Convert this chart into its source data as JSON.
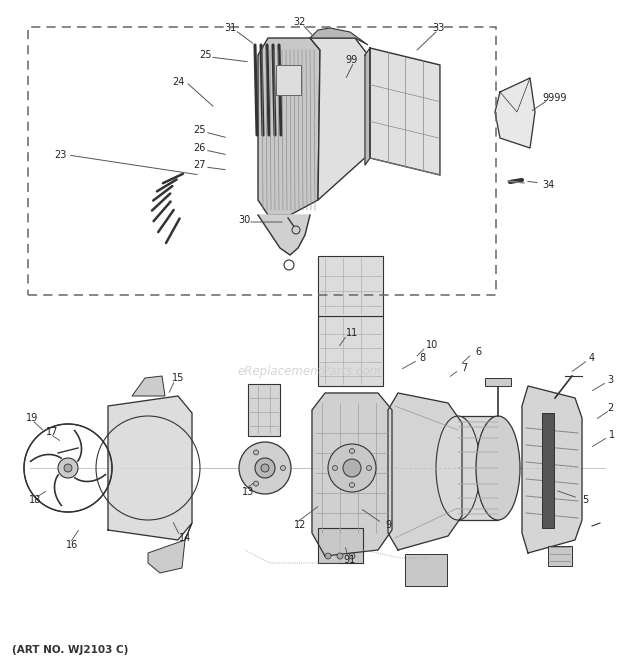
{
  "bg_color": "#ffffff",
  "text_color": "#222222",
  "line_color": "#333333",
  "art_no": "(ART NO. WJ2103 C)",
  "watermark": "eReplacementParts.com",
  "top_labels": [
    [
      60,
      155,
      "23"
    ],
    [
      178,
      82,
      "24"
    ],
    [
      205,
      55,
      "25"
    ],
    [
      199,
      130,
      "25"
    ],
    [
      199,
      148,
      "26"
    ],
    [
      199,
      165,
      "27"
    ],
    [
      244,
      220,
      "30"
    ],
    [
      230,
      28,
      "31"
    ],
    [
      300,
      22,
      "32"
    ],
    [
      352,
      60,
      "99"
    ],
    [
      438,
      28,
      "33"
    ],
    [
      555,
      98,
      "9999"
    ],
    [
      548,
      185,
      "34"
    ]
  ],
  "bot_labels": [
    [
      610,
      408,
      "2"
    ],
    [
      612,
      435,
      "1"
    ],
    [
      610,
      380,
      "3"
    ],
    [
      592,
      358,
      "4"
    ],
    [
      585,
      500,
      "5"
    ],
    [
      478,
      352,
      "6"
    ],
    [
      464,
      368,
      "7"
    ],
    [
      422,
      358,
      "8"
    ],
    [
      388,
      525,
      "9"
    ],
    [
      432,
      345,
      "10"
    ],
    [
      352,
      333,
      "11"
    ],
    [
      300,
      525,
      "12"
    ],
    [
      248,
      492,
      "13"
    ],
    [
      185,
      538,
      "14"
    ],
    [
      178,
      378,
      "15"
    ],
    [
      72,
      545,
      "16"
    ],
    [
      52,
      432,
      "17"
    ],
    [
      35,
      500,
      "18"
    ],
    [
      32,
      418,
      "19"
    ],
    [
      350,
      560,
      "91"
    ]
  ]
}
